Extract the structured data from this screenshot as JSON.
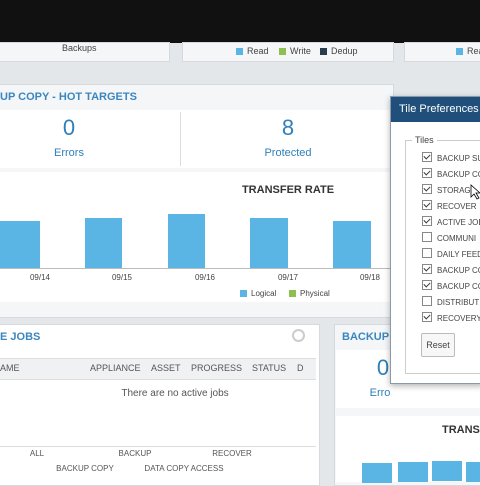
{
  "top": {
    "backups_label": "Backups",
    "legend": [
      "Read",
      "Write",
      "Dedup"
    ],
    "legend_right": "Read"
  },
  "hot_targets": {
    "title": "UP COPY - HOT TARGETS",
    "errors_value": "0",
    "errors_label": "Errors",
    "protected_value": "8",
    "protected_label": "Protected",
    "chart_title": "TRANSFER RATE",
    "dates": [
      "09/14",
      "09/15",
      "09/16",
      "09/17",
      "09/18"
    ],
    "legend": [
      "Logical",
      "Physical"
    ]
  },
  "jobs": {
    "title": "E JOBS",
    "columns": [
      "AME",
      "APPLIANCE",
      "ASSET",
      "PROGRESS",
      "STATUS",
      "D"
    ],
    "empty": "There are no active jobs",
    "tabs": [
      "ALL",
      "BACKUP",
      "RECOVER",
      "BACKUP COPY",
      "DATA COPY ACCESS"
    ]
  },
  "backup_panel": {
    "title": "BACKUP",
    "value": "0",
    "label": "Erro",
    "chart_title": "TRANSF"
  },
  "dialog": {
    "title": "Tile Preferences",
    "group": "Tiles",
    "button": "Reset",
    "tiles": [
      {
        "label": "BACKUP SU",
        "checked": true
      },
      {
        "label": "BACKUP CO",
        "checked": true
      },
      {
        "label": "STORAG",
        "checked": true
      },
      {
        "label": "RECOVER",
        "checked": true
      },
      {
        "label": "ACTIVE JOB",
        "checked": true
      },
      {
        "label": "COMMUNI",
        "checked": false
      },
      {
        "label": "DAILY FEED",
        "checked": false
      },
      {
        "label": "BACKUP CO",
        "checked": true
      },
      {
        "label": "BACKUP CO",
        "checked": true
      },
      {
        "label": "DISTRIBUT",
        "checked": false
      },
      {
        "label": "RECOVERY",
        "checked": true
      }
    ]
  }
}
